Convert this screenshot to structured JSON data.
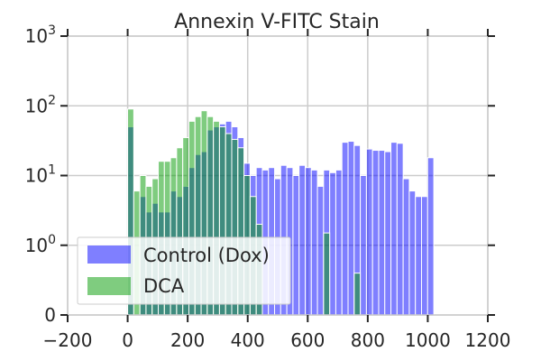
{
  "chart_data": {
    "type": "bar",
    "title": "Annexin V-FITC Stain",
    "xlabel": "",
    "ylabel": "",
    "xlim": [
      -200,
      1200
    ],
    "yscale": "symlog",
    "ylim": [
      0,
      1000
    ],
    "x_ticks": [
      -200,
      0,
      200,
      400,
      600,
      800,
      1000,
      1200
    ],
    "x_tick_labels": [
      "−200",
      "0",
      "200",
      "400",
      "600",
      "800",
      "1000",
      "1200"
    ],
    "y_ticks": [
      {
        "value": 0,
        "base": "0",
        "exp": ""
      },
      {
        "value": 1,
        "base": "10",
        "exp": "0"
      },
      {
        "value": 10,
        "base": "10",
        "exp": "1"
      },
      {
        "value": 100,
        "base": "10",
        "exp": "2"
      },
      {
        "value": 1000,
        "base": "10",
        "exp": "3"
      }
    ],
    "grid": true,
    "legend_position": "lower-left",
    "bin_width": 20.4,
    "bin_starts": [
      0.0,
      20.4,
      40.8,
      61.2,
      81.6,
      102.0,
      122.4,
      142.8,
      163.2,
      183.6,
      204.0,
      224.4,
      244.8,
      265.2,
      285.6,
      306.0,
      326.4,
      346.8,
      367.2,
      387.6,
      408.0,
      428.4,
      448.8,
      469.2,
      489.6,
      510.0,
      530.4,
      550.8,
      571.2,
      591.6,
      612.0,
      632.4,
      652.8,
      673.2,
      693.6,
      714.0,
      734.4,
      754.8,
      775.2,
      795.6,
      816.0,
      836.4,
      856.8,
      877.2,
      897.6,
      918.0,
      938.4,
      958.8,
      979.2,
      999.6
    ],
    "series": [
      {
        "name": "Control (Dox)",
        "color": "#0000ff",
        "values": [
          50,
          0,
          5,
          3,
          4,
          3,
          3,
          6,
          5,
          7,
          13,
          20,
          22,
          45,
          50,
          55,
          60,
          50,
          35,
          15,
          10,
          13,
          12,
          13,
          9,
          14,
          13,
          10,
          14,
          13,
          12,
          7,
          12,
          11,
          12,
          30,
          31,
          27,
          10,
          24,
          23,
          23,
          22,
          30,
          29,
          9,
          6,
          5,
          5,
          18
        ]
      },
      {
        "name": "DCA",
        "color": "#009900",
        "values": [
          90,
          6,
          10,
          7,
          9,
          16,
          16,
          18,
          25,
          35,
          60,
          70,
          85,
          70,
          60,
          50,
          40,
          33,
          25,
          10,
          5,
          2,
          0,
          0,
          0,
          0,
          0,
          0,
          0,
          0,
          0,
          0,
          1.5,
          0,
          0,
          0,
          0,
          0.6,
          0,
          0,
          0,
          0,
          0,
          0,
          0,
          0,
          0,
          0,
          0,
          0
        ]
      }
    ]
  }
}
